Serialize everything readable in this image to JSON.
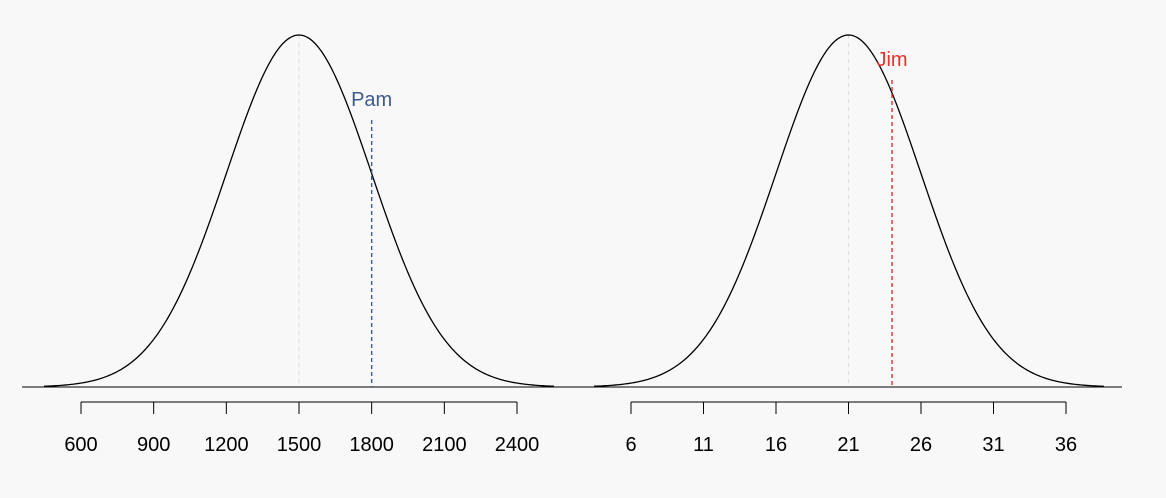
{
  "chart_data": [
    {
      "type": "line",
      "title": "",
      "xlabel": "",
      "ylabel": "",
      "distribution": "normal",
      "mean": 1500,
      "sd": 300,
      "xlim": [
        450,
        2550
      ],
      "ticks": [
        600,
        900,
        1200,
        1500,
        1800,
        2100,
        2400
      ],
      "tick_labels": [
        "600",
        "900",
        "1200",
        "1500",
        "1800",
        "2100",
        "2400"
      ],
      "mean_guide": 1500,
      "marker": {
        "label": "Pam",
        "x": 1800,
        "color": "#3d5a8c"
      },
      "line_color": "#000000"
    },
    {
      "type": "line",
      "title": "",
      "xlabel": "",
      "ylabel": "",
      "distribution": "normal",
      "mean": 21,
      "sd": 5,
      "xlim": [
        18.5,
        23.5
      ],
      "ticks": [
        6,
        11,
        16,
        21,
        26,
        31,
        36
      ],
      "tick_labels": [
        "6",
        "11",
        "16",
        "21",
        "26",
        "31",
        "36"
      ],
      "mean_guide": 21,
      "marker": {
        "label": "Jim",
        "x": 24,
        "color": "#e8312a"
      },
      "line_color": "#000000"
    }
  ]
}
